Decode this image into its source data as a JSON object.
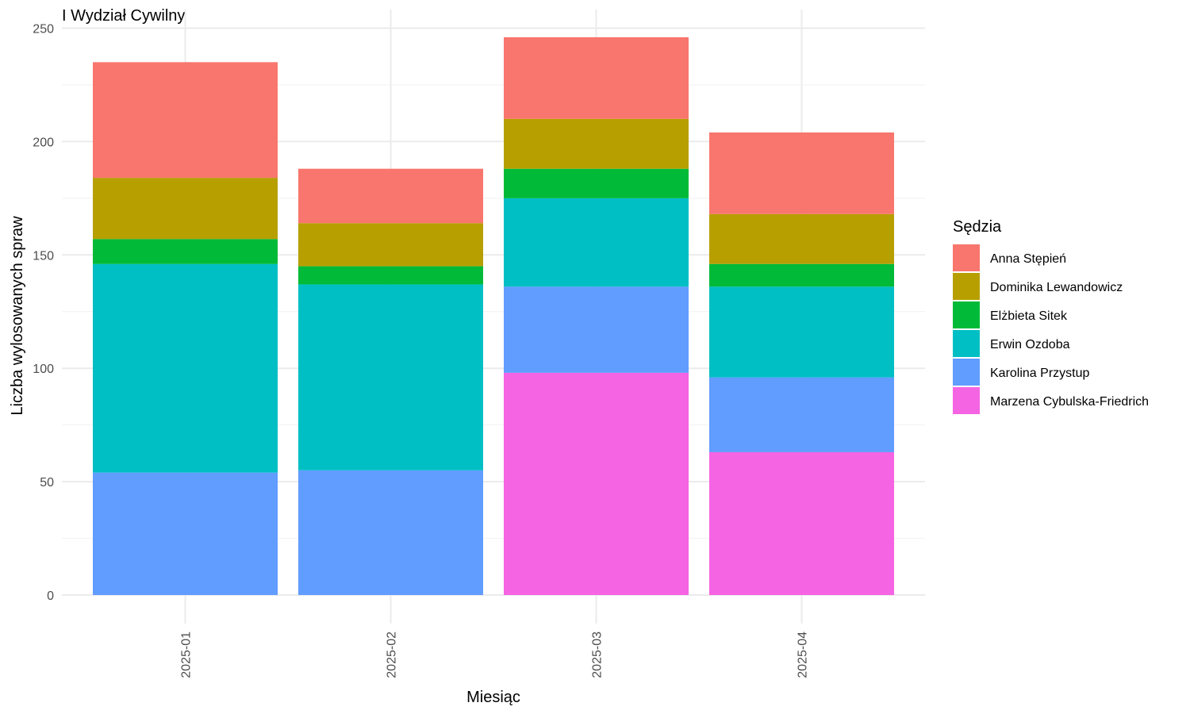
{
  "chart_data": {
    "type": "bar",
    "stacked": true,
    "title": "I Wydział Cywilny",
    "xlabel": "Miesiąc",
    "ylabel": "Liczba wylosowanych spraw",
    "categories": [
      "2025-01",
      "2025-02",
      "2025-03",
      "2025-04"
    ],
    "ylim": [
      0,
      250
    ],
    "yticks": [
      0,
      50,
      100,
      150,
      200,
      250
    ],
    "grid": true,
    "legend_title": "Sędzia",
    "legend_position": "right",
    "series": [
      {
        "name": "Anna Stępień",
        "color": "#F8766D",
        "values": [
          51,
          24,
          36,
          36
        ]
      },
      {
        "name": "Dominika Lewandowicz",
        "color": "#B79F00",
        "values": [
          27,
          19,
          22,
          22
        ]
      },
      {
        "name": "Elżbieta Sitek",
        "color": "#00BA38",
        "values": [
          11,
          8,
          13,
          10
        ]
      },
      {
        "name": "Erwin Ozdoba",
        "color": "#00BFC4",
        "values": [
          92,
          82,
          39,
          40
        ]
      },
      {
        "name": "Karolina Przystup",
        "color": "#619CFF",
        "values": [
          54,
          55,
          38,
          33
        ]
      },
      {
        "name": "Marzena Cybulska-Friedrich",
        "color": "#F564E3",
        "values": [
          0,
          0,
          98,
          63
        ]
      }
    ]
  }
}
